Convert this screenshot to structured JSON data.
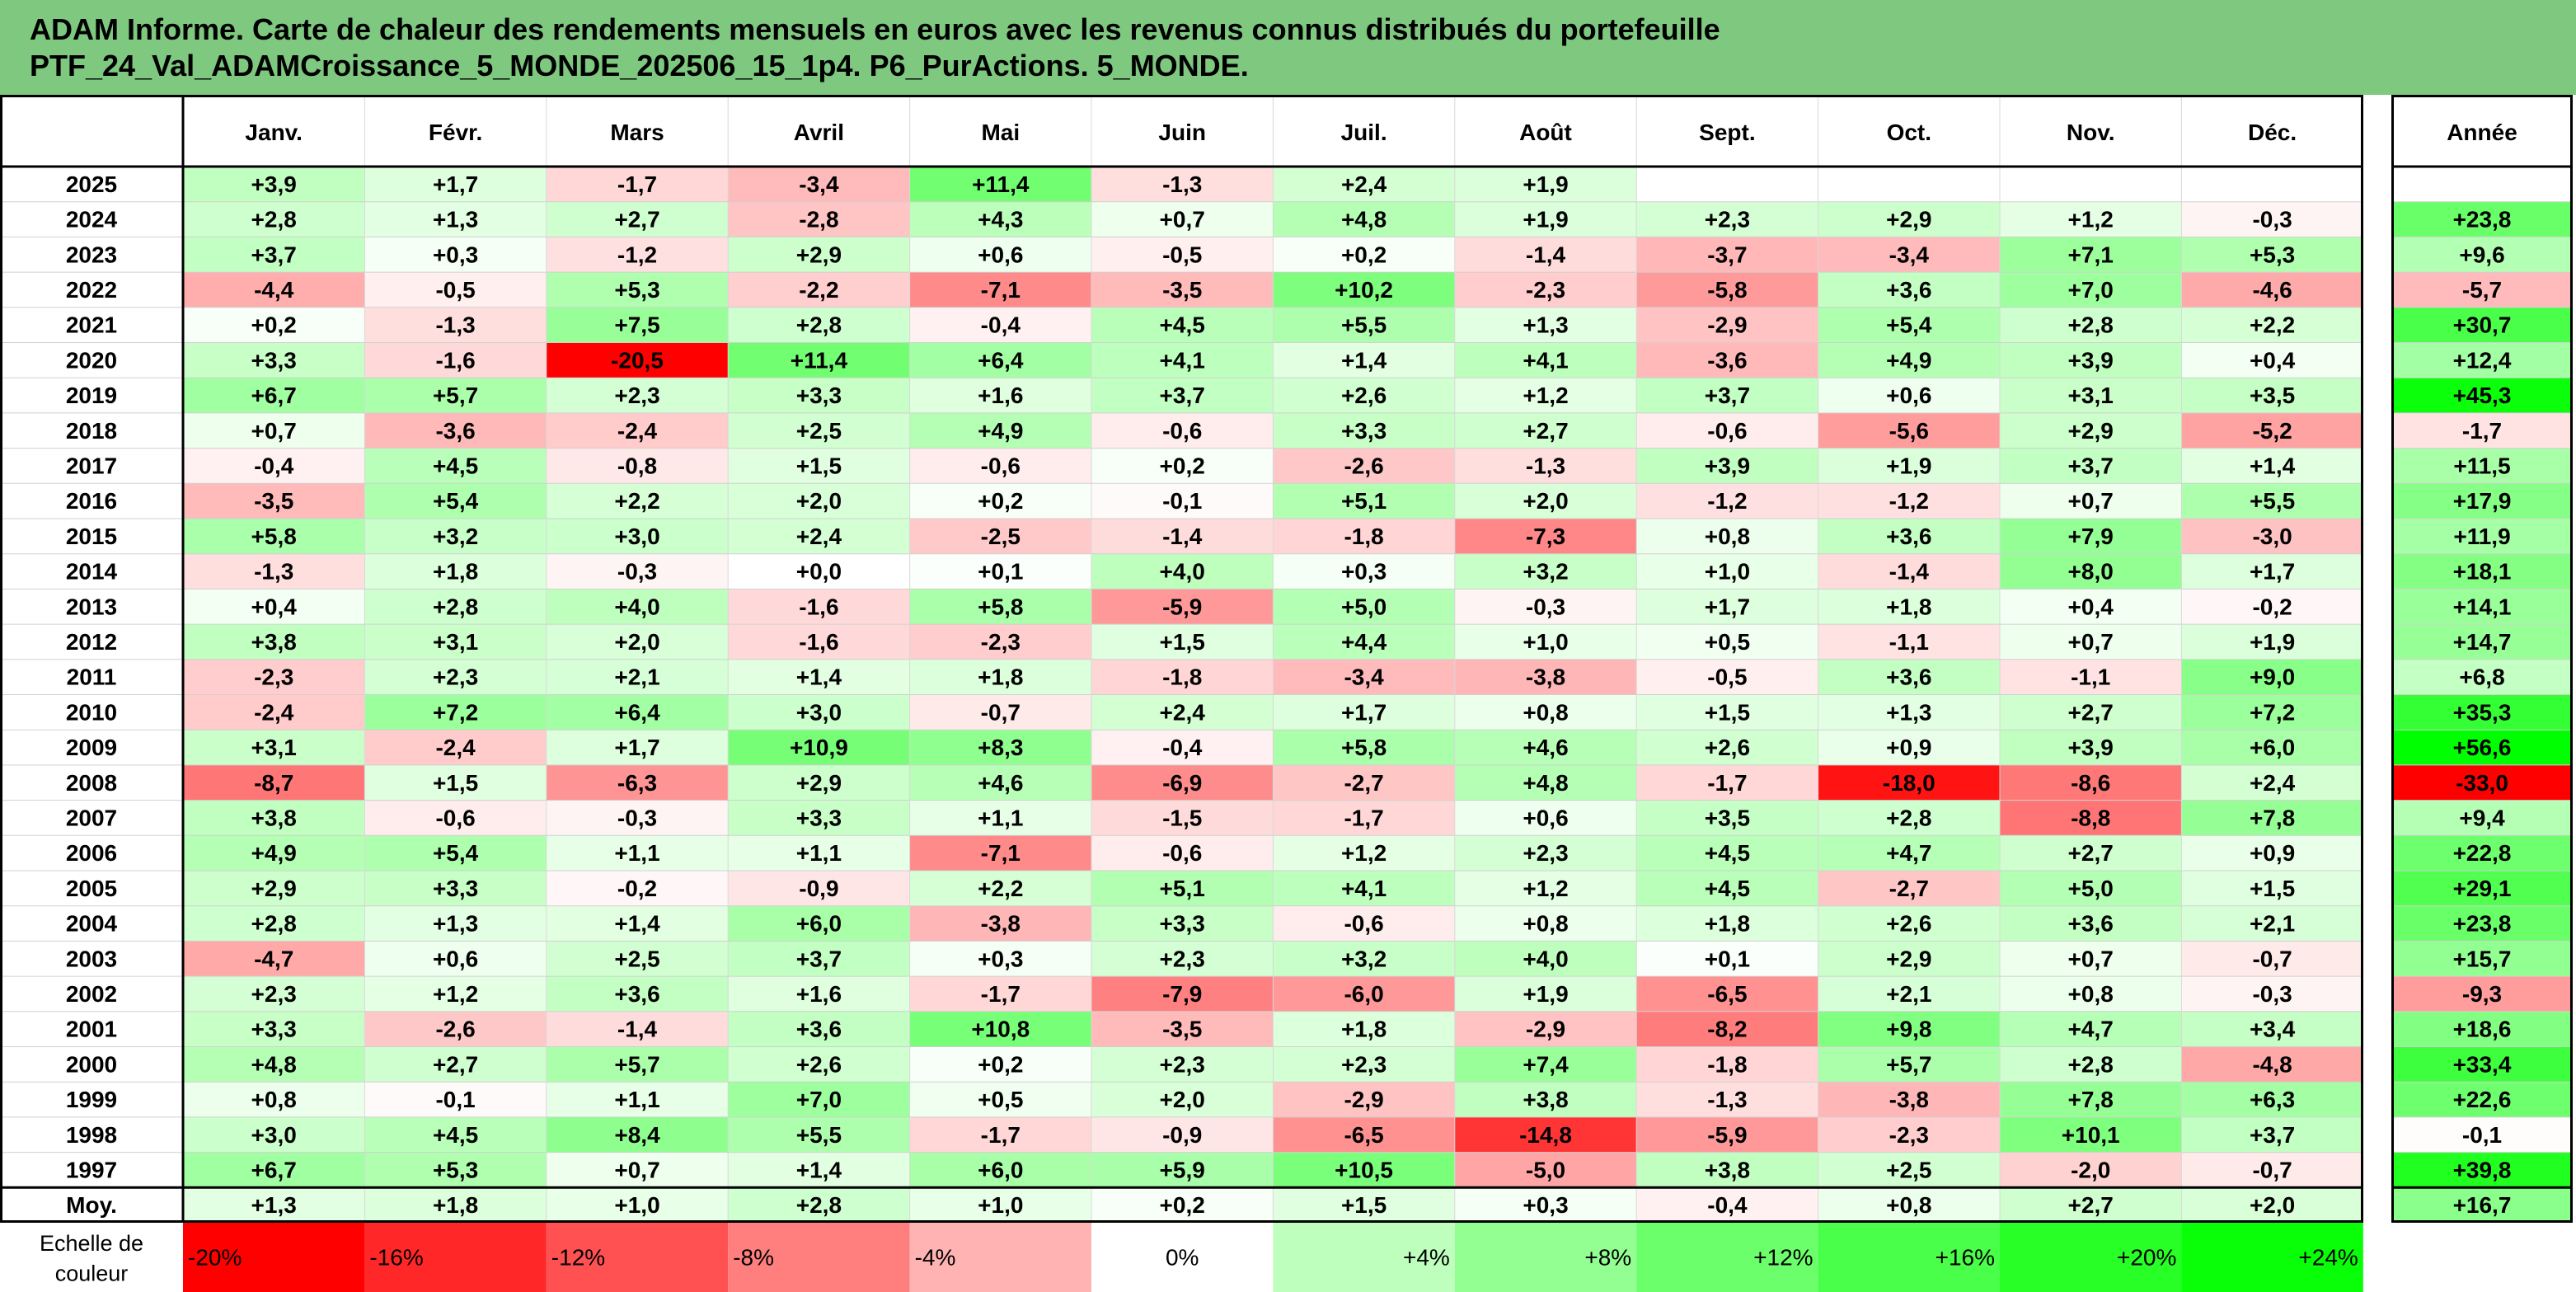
{
  "title": {
    "line1": "ADAM Informe. Carte de chaleur des rendements mensuels en euros avec les revenus connus distribués du portefeuille",
    "line2": "PTF_24_Val_ADAMCroissance_5_MONDE_202506_15_1p4. P6_PurActions. 5_MONDE."
  },
  "chart_data": {
    "type": "heatmap",
    "columns": [
      "Janv.",
      "Févr.",
      "Mars",
      "Avril",
      "Mai",
      "Juin",
      "Juil.",
      "Août",
      "Sept.",
      "Oct.",
      "Nov.",
      "Déc."
    ],
    "year_column": "Année",
    "rows": [
      {
        "year": "2025",
        "values": [
          "+3,9",
          "+1,7",
          "-1,7",
          "-3,4",
          "+11,4",
          "-1,3",
          "+2,4",
          "+1,9",
          "",
          "",
          "",
          ""
        ],
        "annual": ""
      },
      {
        "year": "2024",
        "values": [
          "+2,8",
          "+1,3",
          "+2,7",
          "-2,8",
          "+4,3",
          "+0,7",
          "+4,8",
          "+1,9",
          "+2,3",
          "+2,9",
          "+1,2",
          "-0,3"
        ],
        "annual": "+23,8"
      },
      {
        "year": "2023",
        "values": [
          "+3,7",
          "+0,3",
          "-1,2",
          "+2,9",
          "+0,6",
          "-0,5",
          "+0,2",
          "-1,4",
          "-3,7",
          "-3,4",
          "+7,1",
          "+5,3"
        ],
        "annual": "+9,6"
      },
      {
        "year": "2022",
        "values": [
          "-4,4",
          "-0,5",
          "+5,3",
          "-2,2",
          "-7,1",
          "-3,5",
          "+10,2",
          "-2,3",
          "-5,8",
          "+3,6",
          "+7,0",
          "-4,6"
        ],
        "annual": "-5,7"
      },
      {
        "year": "2021",
        "values": [
          "+0,2",
          "-1,3",
          "+7,5",
          "+2,8",
          "-0,4",
          "+4,5",
          "+5,5",
          "+1,3",
          "-2,9",
          "+5,4",
          "+2,8",
          "+2,2"
        ],
        "annual": "+30,7"
      },
      {
        "year": "2020",
        "values": [
          "+3,3",
          "-1,6",
          "-20,5",
          "+11,4",
          "+6,4",
          "+4,1",
          "+1,4",
          "+4,1",
          "-3,6",
          "+4,9",
          "+3,9",
          "+0,4"
        ],
        "annual": "+12,4"
      },
      {
        "year": "2019",
        "values": [
          "+6,7",
          "+5,7",
          "+2,3",
          "+3,3",
          "+1,6",
          "+3,7",
          "+2,6",
          "+1,2",
          "+3,7",
          "+0,6",
          "+3,1",
          "+3,5"
        ],
        "annual": "+45,3"
      },
      {
        "year": "2018",
        "values": [
          "+0,7",
          "-3,6",
          "-2,4",
          "+2,5",
          "+4,9",
          "-0,6",
          "+3,3",
          "+2,7",
          "-0,6",
          "-5,6",
          "+2,9",
          "-5,2"
        ],
        "annual": "-1,7"
      },
      {
        "year": "2017",
        "values": [
          "-0,4",
          "+4,5",
          "-0,8",
          "+1,5",
          "-0,6",
          "+0,2",
          "-2,6",
          "-1,3",
          "+3,9",
          "+1,9",
          "+3,7",
          "+1,4"
        ],
        "annual": "+11,5"
      },
      {
        "year": "2016",
        "values": [
          "-3,5",
          "+5,4",
          "+2,2",
          "+2,0",
          "+0,2",
          "-0,1",
          "+5,1",
          "+2,0",
          "-1,2",
          "-1,2",
          "+0,7",
          "+5,5"
        ],
        "annual": "+17,9"
      },
      {
        "year": "2015",
        "values": [
          "+5,8",
          "+3,2",
          "+3,0",
          "+2,4",
          "-2,5",
          "-1,4",
          "-1,8",
          "-7,3",
          "+0,8",
          "+3,6",
          "+7,9",
          "-3,0"
        ],
        "annual": "+11,9"
      },
      {
        "year": "2014",
        "values": [
          "-1,3",
          "+1,8",
          "-0,3",
          "+0,0",
          "+0,1",
          "+4,0",
          "+0,3",
          "+3,2",
          "+1,0",
          "-1,4",
          "+8,0",
          "+1,7"
        ],
        "annual": "+18,1"
      },
      {
        "year": "2013",
        "values": [
          "+0,4",
          "+2,8",
          "+4,0",
          "-1,6",
          "+5,8",
          "-5,9",
          "+5,0",
          "-0,3",
          "+1,7",
          "+1,8",
          "+0,4",
          "-0,2"
        ],
        "annual": "+14,1"
      },
      {
        "year": "2012",
        "values": [
          "+3,8",
          "+3,1",
          "+2,0",
          "-1,6",
          "-2,3",
          "+1,5",
          "+4,4",
          "+1,0",
          "+0,5",
          "-1,1",
          "+0,7",
          "+1,9"
        ],
        "annual": "+14,7"
      },
      {
        "year": "2011",
        "values": [
          "-2,3",
          "+2,3",
          "+2,1",
          "+1,4",
          "+1,8",
          "-1,8",
          "-3,4",
          "-3,8",
          "-0,5",
          "+3,6",
          "-1,1",
          "+9,0"
        ],
        "annual": "+6,8"
      },
      {
        "year": "2010",
        "values": [
          "-2,4",
          "+7,2",
          "+6,4",
          "+3,0",
          "-0,7",
          "+2,4",
          "+1,7",
          "+0,8",
          "+1,5",
          "+1,3",
          "+2,7",
          "+7,2"
        ],
        "annual": "+35,3"
      },
      {
        "year": "2009",
        "values": [
          "+3,1",
          "-2,4",
          "+1,7",
          "+10,9",
          "+8,3",
          "-0,4",
          "+5,8",
          "+4,6",
          "+2,6",
          "+0,9",
          "+3,9",
          "+6,0"
        ],
        "annual": "+56,6"
      },
      {
        "year": "2008",
        "values": [
          "-8,7",
          "+1,5",
          "-6,3",
          "+2,9",
          "+4,6",
          "-6,9",
          "-2,7",
          "+4,8",
          "-1,7",
          "-18,0",
          "-8,6",
          "+2,4"
        ],
        "annual": "-33,0"
      },
      {
        "year": "2007",
        "values": [
          "+3,8",
          "-0,6",
          "-0,3",
          "+3,3",
          "+1,1",
          "-1,5",
          "-1,7",
          "+0,6",
          "+3,5",
          "+2,8",
          "-8,8",
          "+7,8"
        ],
        "annual": "+9,4"
      },
      {
        "year": "2006",
        "values": [
          "+4,9",
          "+5,4",
          "+1,1",
          "+1,1",
          "-7,1",
          "-0,6",
          "+1,2",
          "+2,3",
          "+4,5",
          "+4,7",
          "+2,7",
          "+0,9"
        ],
        "annual": "+22,8"
      },
      {
        "year": "2005",
        "values": [
          "+2,9",
          "+3,3",
          "-0,2",
          "-0,9",
          "+2,2",
          "+5,1",
          "+4,1",
          "+1,2",
          "+4,5",
          "-2,7",
          "+5,0",
          "+1,5"
        ],
        "annual": "+29,1"
      },
      {
        "year": "2004",
        "values": [
          "+2,8",
          "+1,3",
          "+1,4",
          "+6,0",
          "-3,8",
          "+3,3",
          "-0,6",
          "+0,8",
          "+1,8",
          "+2,6",
          "+3,6",
          "+2,1"
        ],
        "annual": "+23,8"
      },
      {
        "year": "2003",
        "values": [
          "-4,7",
          "+0,6",
          "+2,5",
          "+3,7",
          "+0,3",
          "+2,3",
          "+3,2",
          "+4,0",
          "+0,1",
          "+2,9",
          "+0,7",
          "-0,7"
        ],
        "annual": "+15,7"
      },
      {
        "year": "2002",
        "values": [
          "+2,3",
          "+1,2",
          "+3,6",
          "+1,6",
          "-1,7",
          "-7,9",
          "-6,0",
          "+1,9",
          "-6,5",
          "+2,1",
          "+0,8",
          "-0,3"
        ],
        "annual": "-9,3"
      },
      {
        "year": "2001",
        "values": [
          "+3,3",
          "-2,6",
          "-1,4",
          "+3,6",
          "+10,8",
          "-3,5",
          "+1,8",
          "-2,9",
          "-8,2",
          "+9,8",
          "+4,7",
          "+3,4"
        ],
        "annual": "+18,6"
      },
      {
        "year": "2000",
        "values": [
          "+4,8",
          "+2,7",
          "+5,7",
          "+2,6",
          "+0,2",
          "+2,3",
          "+2,3",
          "+7,4",
          "-1,8",
          "+5,7",
          "+2,8",
          "-4,8"
        ],
        "annual": "+33,4"
      },
      {
        "year": "1999",
        "values": [
          "+0,8",
          "-0,1",
          "+1,1",
          "+7,0",
          "+0,5",
          "+2,0",
          "-2,9",
          "+3,8",
          "-1,3",
          "-3,8",
          "+7,8",
          "+6,3"
        ],
        "annual": "+22,6"
      },
      {
        "year": "1998",
        "values": [
          "+3,0",
          "+4,5",
          "+8,4",
          "+5,5",
          "-1,7",
          "-0,9",
          "-6,5",
          "-14,8",
          "-5,9",
          "-2,3",
          "+10,1",
          "+3,7"
        ],
        "annual": "-0,1"
      },
      {
        "year": "1997",
        "values": [
          "+6,7",
          "+5,3",
          "+0,7",
          "+1,4",
          "+6,0",
          "+5,9",
          "+10,5",
          "-5,0",
          "+3,8",
          "+2,5",
          "-2,0",
          "-0,7"
        ],
        "annual": "+39,8"
      }
    ],
    "average": {
      "label": "Moy.",
      "values": [
        "+1,3",
        "+1,8",
        "+1,0",
        "+2,8",
        "+1,0",
        "+0,2",
        "+1,5",
        "+0,3",
        "-0,4",
        "+0,8",
        "+2,7",
        "+2,0"
      ],
      "annual": "+16,7"
    },
    "scale": {
      "label_line1": "Echelle de",
      "label_line2": "couleur",
      "steps": [
        "-20%",
        "-16%",
        "-12%",
        "-8%",
        "-4%",
        "0%",
        "+4%",
        "+8%",
        "+12%",
        "+16%",
        "+20%",
        "+24%"
      ]
    },
    "colors": {
      "neg_max": "#ff0000",
      "neutral": "#ffffff",
      "pos_max": "#00ff00",
      "header_bg": "#7ec87f",
      "border": "#000000"
    }
  }
}
